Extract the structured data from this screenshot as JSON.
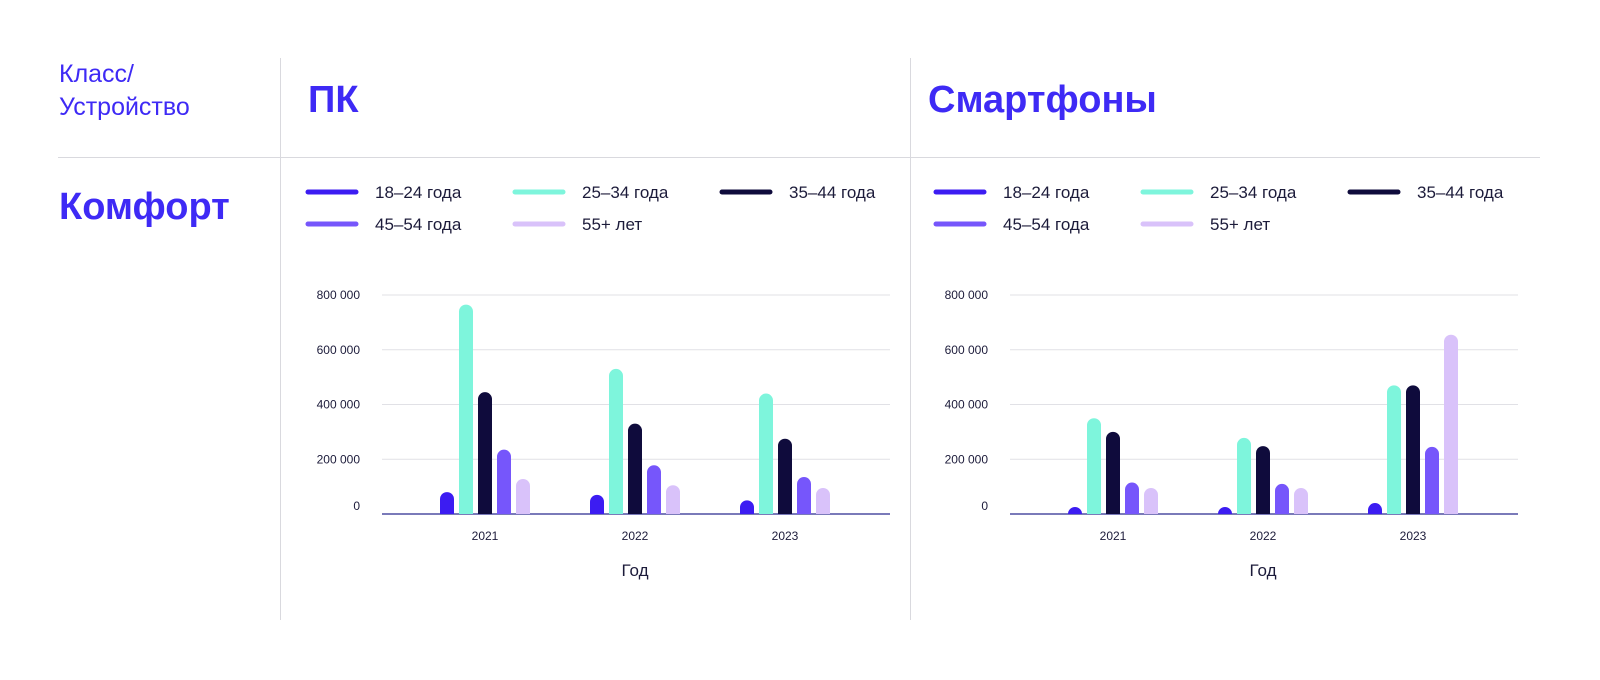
{
  "header": {
    "corner_label_line1": "Класс/",
    "corner_label_line2": "Устройство"
  },
  "columns": [
    {
      "title": "ПК"
    },
    {
      "title": "Смартфоны"
    }
  ],
  "rows": [
    {
      "label": "Комфорт"
    }
  ],
  "colors": {
    "accent": "#3e2af5",
    "grid": "#e1e1e6",
    "axis": "#2b2a8f",
    "divider": "#d9d9de"
  },
  "chart_data": [
    {
      "type": "bar",
      "categories": [
        "2021",
        "2022",
        "2023"
      ],
      "xlabel": "Год",
      "ylabel": "",
      "ylim": [
        0,
        800000
      ],
      "yticks": [
        {
          "value": 0,
          "label": "0"
        },
        {
          "value": 200000,
          "label": "200 000"
        },
        {
          "value": 400000,
          "label": "400 000"
        },
        {
          "value": 600000,
          "label": "600 000"
        },
        {
          "value": 800000,
          "label": "800 000"
        }
      ],
      "grid": true,
      "legend_position": "top",
      "series": [
        {
          "name": "18–24 года",
          "color": "#3c1cf2",
          "values": [
            80000,
            70000,
            50000
          ]
        },
        {
          "name": "25–34 года",
          "color": "#7ef5dc",
          "values": [
            765000,
            530000,
            440000
          ]
        },
        {
          "name": "35–44 года",
          "color": "#0f0b3c",
          "values": [
            445000,
            330000,
            275000
          ]
        },
        {
          "name": "45–54 года",
          "color": "#7656fb",
          "values": [
            235000,
            178000,
            135000
          ]
        },
        {
          "name": "55+ лет",
          "color": "#d9c2fa",
          "values": [
            128000,
            105000,
            95000
          ]
        }
      ]
    },
    {
      "type": "bar",
      "categories": [
        "2021",
        "2022",
        "2023"
      ],
      "xlabel": "Год",
      "ylabel": "",
      "ylim": [
        0,
        800000
      ],
      "yticks": [
        {
          "value": 0,
          "label": "0"
        },
        {
          "value": 200000,
          "label": "200 000"
        },
        {
          "value": 400000,
          "label": "400 000"
        },
        {
          "value": 600000,
          "label": "600 000"
        },
        {
          "value": 800000,
          "label": "800 000"
        }
      ],
      "grid": true,
      "legend_position": "top",
      "series": [
        {
          "name": "18–24 года",
          "color": "#3c1cf2",
          "values": [
            22000,
            25000,
            40000
          ]
        },
        {
          "name": "25–34 года",
          "color": "#7ef5dc",
          "values": [
            350000,
            278000,
            470000
          ]
        },
        {
          "name": "35–44 года",
          "color": "#0f0b3c",
          "values": [
            300000,
            248000,
            470000
          ]
        },
        {
          "name": "45–54 года",
          "color": "#7656fb",
          "values": [
            115000,
            110000,
            245000
          ]
        },
        {
          "name": "55+ лет",
          "color": "#d9c2fa",
          "values": [
            95000,
            95000,
            655000
          ]
        }
      ]
    }
  ]
}
